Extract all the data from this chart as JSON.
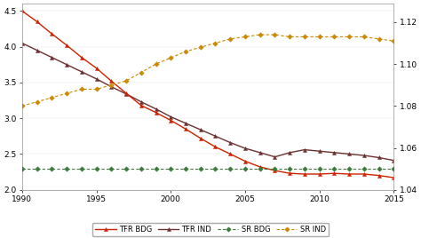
{
  "years": [
    1990,
    1991,
    1992,
    1993,
    1994,
    1995,
    1996,
    1997,
    1998,
    1999,
    2000,
    2001,
    2002,
    2003,
    2004,
    2005,
    2006,
    2007,
    2008,
    2009,
    2010,
    2011,
    2012,
    2013,
    2014,
    2015
  ],
  "tfr_bdg": [
    4.5,
    4.35,
    4.18,
    4.02,
    3.85,
    3.7,
    3.52,
    3.35,
    3.18,
    3.08,
    2.97,
    2.85,
    2.72,
    2.6,
    2.5,
    2.4,
    2.32,
    2.27,
    2.23,
    2.22,
    2.22,
    2.23,
    2.22,
    2.22,
    2.2,
    2.17
  ],
  "tfr_ind": [
    4.05,
    3.95,
    3.85,
    3.75,
    3.65,
    3.55,
    3.44,
    3.34,
    3.23,
    3.13,
    3.02,
    2.93,
    2.84,
    2.75,
    2.66,
    2.58,
    2.52,
    2.46,
    2.52,
    2.56,
    2.54,
    2.52,
    2.5,
    2.48,
    2.45,
    2.41
  ],
  "sr_bdg": [
    1.05,
    1.05,
    1.05,
    1.05,
    1.05,
    1.05,
    1.05,
    1.05,
    1.05,
    1.05,
    1.05,
    1.05,
    1.05,
    1.05,
    1.05,
    1.05,
    1.05,
    1.05,
    1.05,
    1.05,
    1.05,
    1.05,
    1.05,
    1.05,
    1.05,
    1.05
  ],
  "sr_ind": [
    1.08,
    1.082,
    1.084,
    1.086,
    1.088,
    1.088,
    1.09,
    1.092,
    1.096,
    1.1,
    1.103,
    1.106,
    1.108,
    1.11,
    1.112,
    1.113,
    1.114,
    1.114,
    1.113,
    1.113,
    1.113,
    1.113,
    1.113,
    1.113,
    1.112,
    1.111
  ],
  "tfr_bdg_color": "#cc2200",
  "tfr_ind_color": "#6b3030",
  "sr_bdg_color": "#3a7a3a",
  "sr_ind_color": "#cc8800",
  "ylim_left": [
    2.0,
    4.6
  ],
  "ylim_right": [
    1.04,
    1.1288
  ],
  "yticks_left": [
    2.0,
    2.5,
    3.0,
    3.5,
    4.0,
    4.5
  ],
  "yticks_right": [
    1.04,
    1.06,
    1.08,
    1.1,
    1.12
  ],
  "xticks": [
    1990,
    1995,
    2000,
    2005,
    2010,
    2015
  ],
  "legend_labels": [
    "TFR BDG",
    "TFR IND",
    "SR BDG",
    "SR IND"
  ],
  "bg_color": "#ffffff"
}
